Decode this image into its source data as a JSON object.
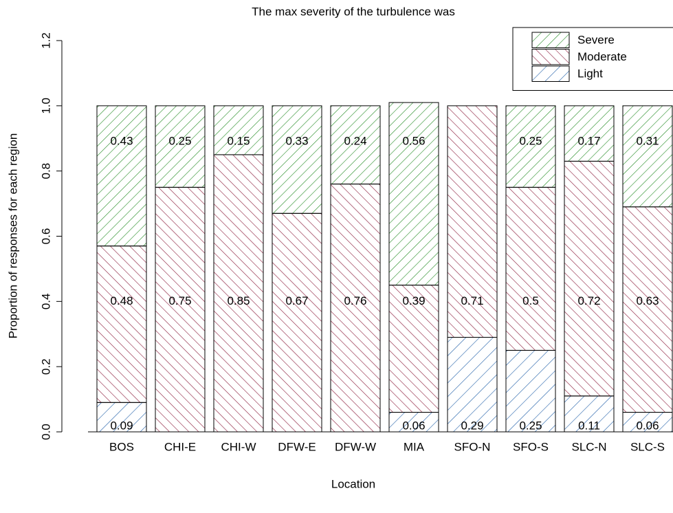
{
  "chart_data": {
    "type": "stacked_bar",
    "title": "The max severity of the turbulence was",
    "x_label": "Location",
    "y_label": "Proportion of responses for each region",
    "categories": [
      "BOS",
      "CHI-E",
      "CHI-W",
      "DFW-E",
      "DFW-W",
      "MIA",
      "SFO-N",
      "SFO-S",
      "SLC-N",
      "SLC-S"
    ],
    "series": [
      {
        "name": "Light",
        "color": "#1f5fa8",
        "values": [
          0.09,
          0,
          0,
          0,
          0,
          0.06,
          0.29,
          0.25,
          0.11,
          0.06
        ]
      },
      {
        "name": "Moderate",
        "color": "#8b1a3a",
        "values": [
          0.48,
          0.75,
          0.85,
          0.67,
          0.76,
          0.39,
          0.71,
          0.5,
          0.72,
          0.63
        ]
      },
      {
        "name": "Severe",
        "color": "#228b22",
        "values": [
          0.43,
          0.25,
          0.15,
          0.33,
          0.24,
          0.56,
          0,
          0.25,
          0.17,
          0.31
        ]
      }
    ],
    "ylim": [
      0,
      1.2
    ],
    "yticks": [
      {
        "value": 0,
        "label": "0.0"
      },
      0.2,
      0.4,
      0.6,
      0.8,
      {
        "value": 1,
        "label": "1.0"
      },
      1.2
    ],
    "legend": "top-right"
  }
}
